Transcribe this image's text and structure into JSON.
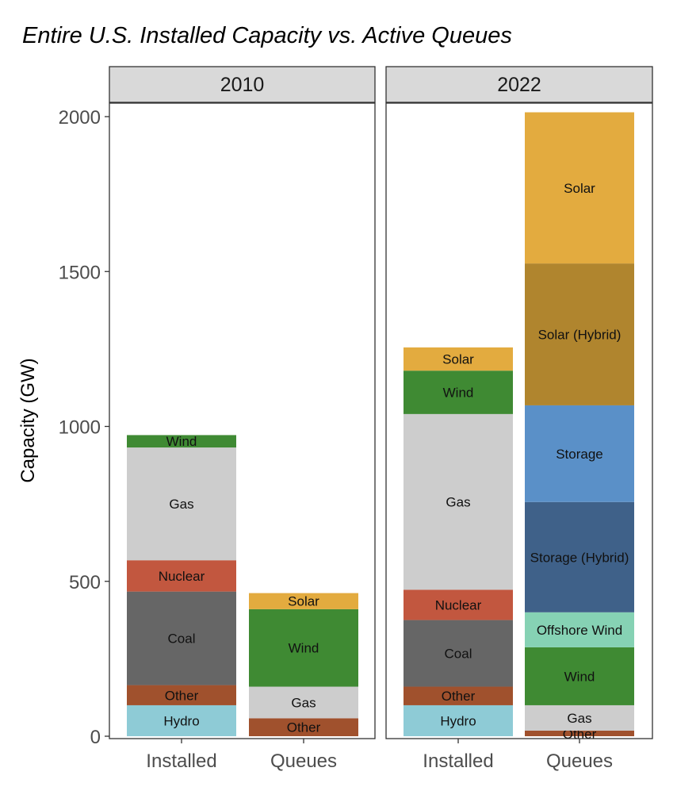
{
  "chart_data": {
    "type": "bar",
    "stacked": true,
    "faceted": true,
    "title": "Entire U.S. Installed Capacity vs. Active Queues",
    "xlabel": "",
    "ylabel": "Capacity (GW)",
    "ylim": [
      0,
      2050
    ],
    "yticks": [
      0,
      500,
      1000,
      1500,
      2000
    ],
    "categories": [
      "Installed",
      "Queues"
    ],
    "colors": {
      "Hydro": "#8ecbd6",
      "Other": "#a0512d",
      "Coal": "#666666",
      "Nuclear": "#c2573f",
      "Gas": "#cdcdcd",
      "Wind": "#3f8a33",
      "Solar": "#e3ab3f",
      "Offshore Wind": "#86d2b4",
      "Storage (Hybrid)": "#3f6189",
      "Storage": "#5a90c8",
      "Solar (Hybrid)": "#b0852e"
    },
    "panels": [
      {
        "label": "2010",
        "bars": [
          {
            "category": "Installed",
            "segments": [
              {
                "name": "Hydro",
                "label": "Hydro",
                "value": 100
              },
              {
                "name": "Other",
                "label": "Other",
                "value": 65
              },
              {
                "name": "Coal",
                "label": "Coal",
                "value": 302
              },
              {
                "name": "Nuclear",
                "label": "Nuclear",
                "value": 101
              },
              {
                "name": "Gas",
                "label": "Gas",
                "value": 364
              },
              {
                "name": "Wind",
                "label": "Wind",
                "value": 40
              }
            ]
          },
          {
            "category": "Queues",
            "segments": [
              {
                "name": "Other",
                "label": "Other",
                "value": 58
              },
              {
                "name": "Gas",
                "label": "Gas",
                "value": 102
              },
              {
                "name": "Wind",
                "label": "Wind",
                "value": 250
              },
              {
                "name": "Solar",
                "label": "Solar",
                "value": 52
              }
            ]
          }
        ]
      },
      {
        "label": "2022",
        "bars": [
          {
            "category": "Installed",
            "segments": [
              {
                "name": "Hydro",
                "label": "Hydro",
                "value": 100
              },
              {
                "name": "Other",
                "label": "Other",
                "value": 60
              },
              {
                "name": "Coal",
                "label": "Coal",
                "value": 215
              },
              {
                "name": "Nuclear",
                "label": "Nuclear",
                "value": 98
              },
              {
                "name": "Gas",
                "label": "Gas",
                "value": 567
              },
              {
                "name": "Wind",
                "label": "Wind",
                "value": 140
              },
              {
                "name": "Solar",
                "label": "Solar",
                "value": 75
              }
            ]
          },
          {
            "category": "Queues",
            "segments": [
              {
                "name": "Other",
                "label": "Other",
                "value": 18
              },
              {
                "name": "Gas",
                "label": "Gas",
                "value": 82
              },
              {
                "name": "Wind",
                "label": "Wind",
                "value": 187
              },
              {
                "name": "Offshore Wind",
                "label": "Offshore Wind",
                "value": 113
              },
              {
                "name": "Storage (Hybrid)",
                "label": "Storage (Hybrid)",
                "value": 356
              },
              {
                "name": "Storage",
                "label": "Storage",
                "value": 312
              },
              {
                "name": "Solar (Hybrid)",
                "label": "Solar (Hybrid)",
                "value": 458
              },
              {
                "name": "Solar",
                "label": "Solar",
                "value": 488
              }
            ]
          }
        ]
      }
    ]
  }
}
